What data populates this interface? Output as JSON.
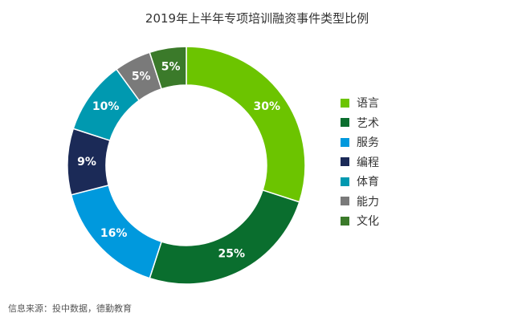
{
  "chart_data": {
    "type": "pie",
    "title": "2019年上半年专项培训融资事件类型比例",
    "categories": [
      "语言",
      "艺术",
      "服务",
      "编程",
      "体育",
      "能力",
      "文化"
    ],
    "values": [
      30,
      25,
      16,
      9,
      10,
      5,
      5
    ],
    "value_labels": [
      "30%",
      "25%",
      "16%",
      "9%",
      "10%",
      "5%",
      "5%"
    ],
    "colors": [
      "#6cc400",
      "#0a6e2e",
      "#0099dd",
      "#1b2a57",
      "#0099b0",
      "#7a7a7a",
      "#3b7a2a"
    ],
    "donut": true,
    "legend_position": "right"
  },
  "source_note": "信息来源：投中数据，德勤教育"
}
